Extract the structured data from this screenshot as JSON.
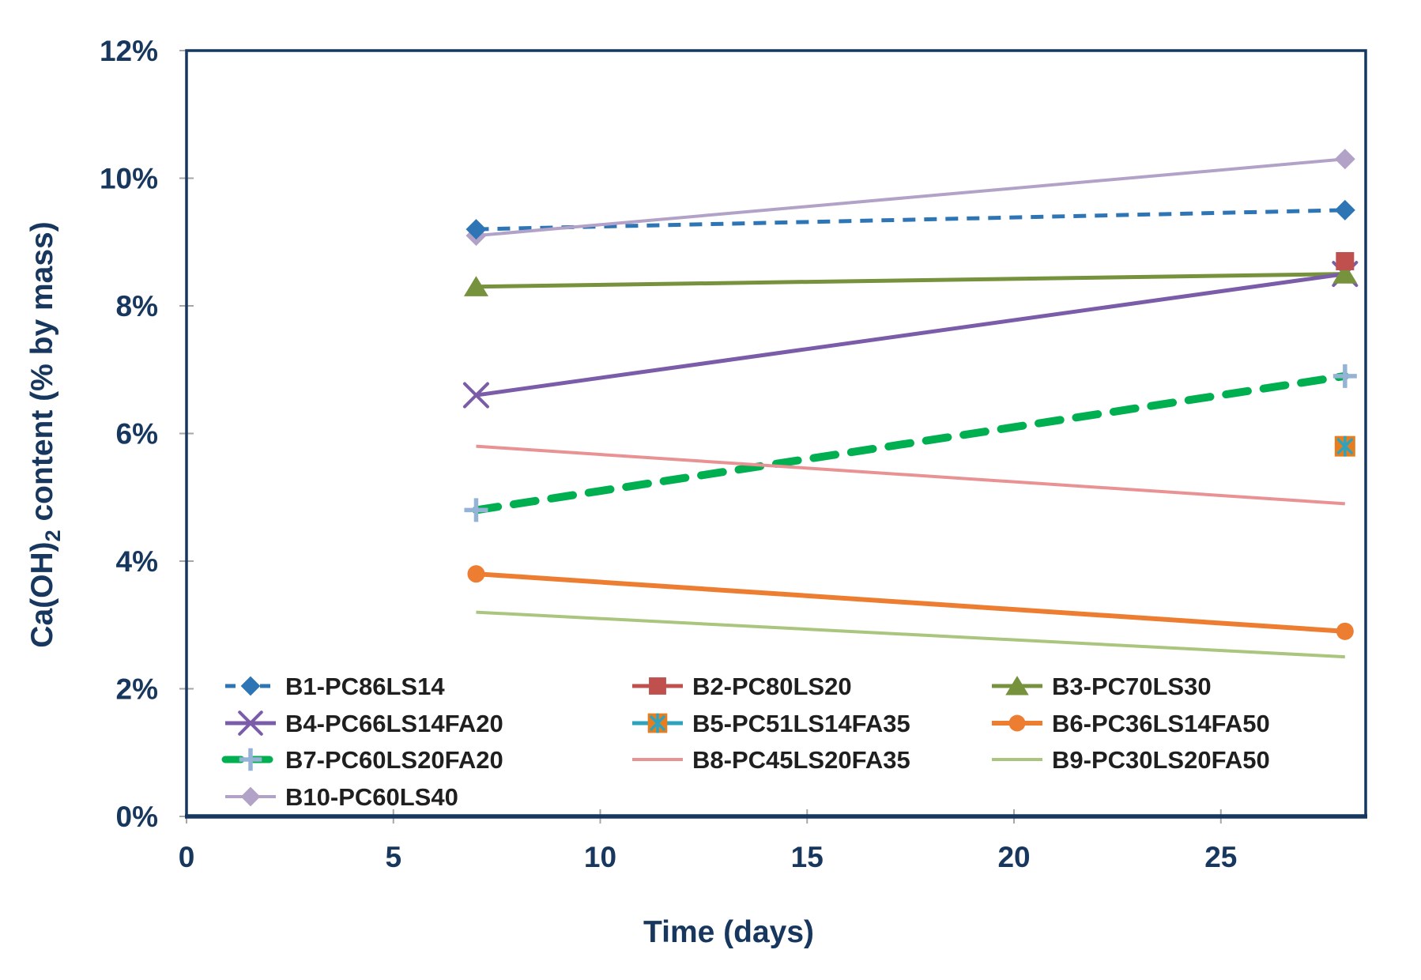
{
  "figure": {
    "background": "#ffffff",
    "axis_frame_color": "#17375E",
    "tick_mark_color": "#A6A6A6",
    "axis_text_color": "#17375E",
    "legend_text_color": "#1f1f1f"
  },
  "chart_data": {
    "type": "line",
    "title": "",
    "xlabel": "Time (days)",
    "ylabel": "Ca(OH)2 content (% by mass)",
    "ylabel_parts": {
      "pre": "Ca(OH)",
      "sub": "2",
      "post": " content (% by mass)"
    },
    "xlim": [
      0,
      28.5
    ],
    "ylim": [
      0,
      12
    ],
    "grid": false,
    "legend_position": "inside-bottom-left",
    "x_tick_values": [
      0,
      5,
      10,
      15,
      20,
      25
    ],
    "x_tick_labels": [
      "0",
      "5",
      "10",
      "15",
      "20",
      "25"
    ],
    "y_tick_values": [
      0,
      2,
      4,
      6,
      8,
      10,
      12
    ],
    "y_tick_labels": [
      "0%",
      "2%",
      "4%",
      "6%",
      "8%",
      "10%",
      "12%"
    ],
    "series": [
      {
        "name": "B1-PC86LS14",
        "color": "#2E75B6",
        "line": "dashed",
        "width": 5,
        "marker": "diamond",
        "points": [
          [
            7,
            9.2
          ],
          [
            28,
            9.5
          ]
        ]
      },
      {
        "name": "B2-PC80LS20",
        "color": "#C0504D",
        "line": "solid",
        "width": 5,
        "marker": "square",
        "points": [
          [
            28,
            8.7
          ]
        ]
      },
      {
        "name": "B3-PC70LS30",
        "color": "#76923C",
        "line": "solid",
        "width": 5,
        "marker": "triangle",
        "points": [
          [
            7,
            8.3
          ],
          [
            28,
            8.5
          ]
        ]
      },
      {
        "name": "B4-PC66LS14FA20",
        "color": "#7A5CA8",
        "line": "solid",
        "width": 5,
        "marker": "x",
        "points": [
          [
            7,
            6.6
          ],
          [
            28,
            8.5
          ]
        ]
      },
      {
        "name": "B5-PC51LS14FA35",
        "color": "#2FA3BE",
        "line": "solid",
        "width": 5,
        "marker": "square-x",
        "marker_color": "#E87D1E",
        "points": [
          [
            28,
            5.8
          ]
        ]
      },
      {
        "name": "B6-PC36LS14FA50",
        "color": "#ED7D31",
        "line": "solid",
        "width": 6,
        "marker": "circle",
        "points": [
          [
            7,
            3.8
          ],
          [
            28,
            2.9
          ]
        ]
      },
      {
        "name": "B7-PC60LS20FA20",
        "color": "#00B050",
        "line": "dashed-bold",
        "width": 10,
        "marker": "plus",
        "marker_color": "#95B3D7",
        "points": [
          [
            7,
            4.8
          ],
          [
            28,
            6.9
          ]
        ]
      },
      {
        "name": "B8-PC45LS20FA35",
        "color": "#E89294",
        "line": "solid",
        "width": 4,
        "marker": "none",
        "points": [
          [
            7,
            5.8
          ],
          [
            28,
            4.9
          ]
        ]
      },
      {
        "name": "B9-PC30LS20FA50",
        "color": "#A9C57E",
        "line": "solid",
        "width": 4,
        "marker": "none",
        "points": [
          [
            7,
            3.2
          ],
          [
            28,
            2.5
          ]
        ]
      },
      {
        "name": "B10-PC60LS40",
        "color": "#B2A2C7",
        "line": "solid",
        "width": 4,
        "marker": "diamond",
        "points": [
          [
            7,
            9.1
          ],
          [
            28,
            10.3
          ]
        ]
      }
    ]
  }
}
